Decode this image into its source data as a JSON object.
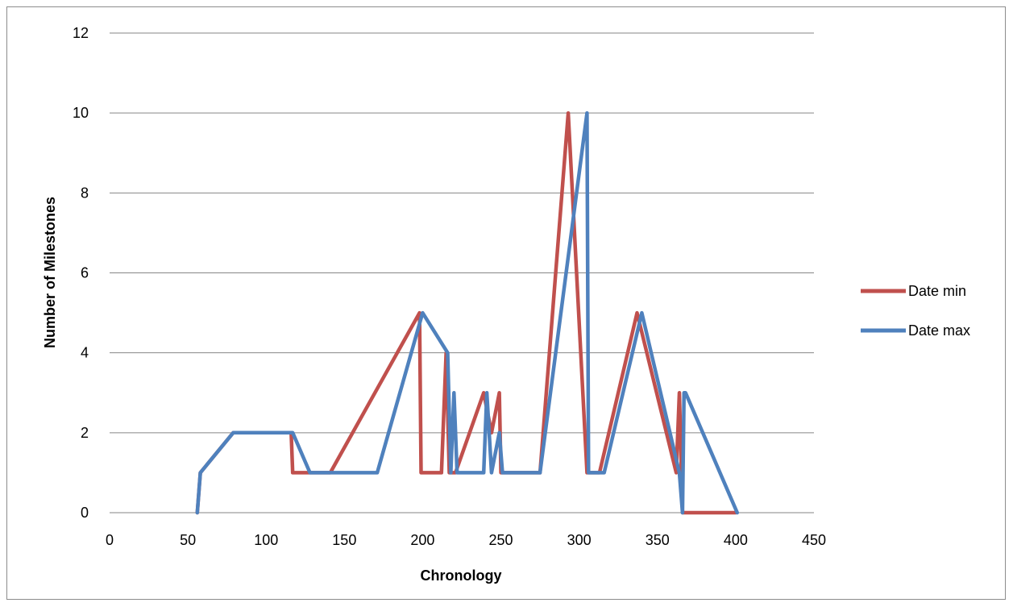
{
  "chart_data": {
    "type": "line",
    "title": "",
    "xlabel": "Chronology",
    "ylabel": "Number of Milestones",
    "xlim": [
      0,
      450
    ],
    "ylim": [
      0,
      12
    ],
    "x_ticks": [
      0,
      50,
      100,
      150,
      200,
      250,
      300,
      350,
      400,
      450
    ],
    "y_ticks": [
      0,
      2,
      4,
      6,
      8,
      10,
      12
    ],
    "grid": "horizontal",
    "legend_position": "right",
    "series": [
      {
        "name": "Date min",
        "color": "#c0504d",
        "x": [
          56,
          58,
          79,
          116,
          117,
          128,
          141,
          198,
          199,
          212,
          215,
          217,
          221,
          239,
          244,
          249,
          250,
          275,
          293,
          305,
          313,
          337,
          362,
          364,
          366,
          400
        ],
        "y": [
          0,
          1,
          2,
          2,
          1,
          1,
          1,
          5,
          1,
          1,
          4,
          1,
          1,
          3,
          2,
          3,
          1,
          1,
          10,
          1,
          1,
          5,
          1,
          3,
          0,
          0
        ]
      },
      {
        "name": "Date max",
        "color": "#4f81bd",
        "x": [
          56,
          58,
          79,
          117,
          128,
          171,
          200,
          216,
          218,
          220,
          222,
          239,
          241,
          244,
          249,
          251,
          275,
          305,
          306,
          316,
          340,
          364,
          366,
          367,
          368,
          401
        ],
        "y": [
          0,
          1,
          2,
          2,
          1,
          1,
          5,
          4,
          1,
          3,
          1,
          1,
          3,
          1,
          2,
          1,
          1,
          10,
          1,
          1,
          5,
          1,
          0,
          3,
          3,
          0
        ]
      }
    ]
  }
}
